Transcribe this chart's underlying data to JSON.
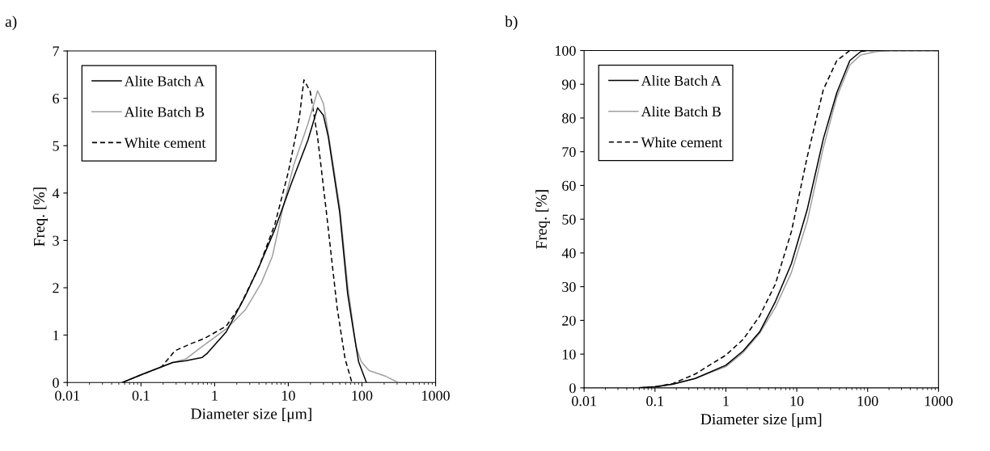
{
  "chart_data": [
    {
      "type": "line",
      "title": "a)",
      "xlabel": "Diameter size [μm]",
      "ylabel": "Freq. [%]",
      "log": "x",
      "xlim": [
        0.01,
        1000
      ],
      "xticks": [
        0.01,
        0.1,
        1,
        10,
        100,
        1000
      ],
      "ylim": [
        0,
        7
      ],
      "yticks": [
        0,
        1,
        2,
        3,
        4,
        5,
        6,
        7
      ],
      "grid": false,
      "legend": "top left",
      "series": [
        {
          "name": "Alite Batch A",
          "color": "#000000",
          "line_style": "solid",
          "x": [
            0.056,
            0.1,
            0.27,
            0.41,
            0.68,
            0.8,
            1.44,
            2.6,
            4.0,
            6.6,
            11,
            18.5,
            25,
            30,
            35,
            50,
            64,
            76,
            90,
            115
          ],
          "values": [
            0,
            0.16,
            0.42,
            0.46,
            0.53,
            0.62,
            1.07,
            1.82,
            2.44,
            3.24,
            4.2,
            5.12,
            5.8,
            5.64,
            5.18,
            3.58,
            1.87,
            1.13,
            0.44,
            0
          ]
        },
        {
          "name": "Alite Batch B",
          "color": "#a0a0a0",
          "line_style": "solid",
          "x": [
            0.056,
            0.1,
            0.27,
            0.41,
            0.68,
            1.44,
            2.6,
            4.3,
            6.1,
            8.5,
            11.9,
            18.5,
            25,
            30,
            35,
            50,
            64,
            83,
            98,
            125,
            210,
            310
          ],
          "values": [
            0,
            0.16,
            0.42,
            0.5,
            0.76,
            1.13,
            1.53,
            2.1,
            2.67,
            3.7,
            4.6,
            5.46,
            6.16,
            5.89,
            5.25,
            3.7,
            2.05,
            0.76,
            0.44,
            0.25,
            0.13,
            0
          ]
        },
        {
          "name": "White cement",
          "color": "#000000",
          "line_style": "dashed",
          "x": [
            0.056,
            0.1,
            0.19,
            0.29,
            0.48,
            0.73,
            1.44,
            2.2,
            4.0,
            6.6,
            10,
            14.1,
            16.3,
            19.8,
            25,
            33,
            46,
            59,
            73
          ],
          "values": [
            0,
            0.16,
            0.33,
            0.67,
            0.82,
            0.93,
            1.19,
            1.61,
            2.44,
            3.35,
            4.44,
            5.58,
            6.39,
            6.15,
            5.18,
            3.58,
            1.58,
            0.5,
            0
          ]
        }
      ]
    },
    {
      "type": "line",
      "title": "b)",
      "xlabel": "Diameter size [μm]",
      "ylabel": "Freq. [%]",
      "log": "x",
      "xlim": [
        0.01,
        1000
      ],
      "xticks": [
        0.01,
        0.1,
        1,
        10,
        100,
        1000
      ],
      "ylim": [
        0,
        100
      ],
      "yticks": [
        0,
        10,
        20,
        30,
        40,
        50,
        60,
        70,
        80,
        90,
        100
      ],
      "grid": false,
      "legend": "top left",
      "series": [
        {
          "name": "Alite Batch A",
          "color": "#000000",
          "line_style": "solid",
          "x": [
            0.06,
            0.1,
            0.18,
            0.37,
            1,
            1.76,
            3.0,
            5.0,
            8.4,
            14.1,
            23.7,
            36.7,
            56,
            80,
            100,
            1000
          ],
          "values": [
            0,
            0.3,
            1.1,
            2.8,
            6.7,
            11,
            16.6,
            25.6,
            36.8,
            53,
            73.8,
            87.5,
            97,
            99.7,
            100,
            100
          ]
        },
        {
          "name": "Alite Batch B",
          "color": "#a0a0a0",
          "line_style": "solid",
          "x": [
            0.06,
            0.1,
            0.18,
            0.37,
            1,
            1.76,
            3.0,
            5.0,
            8.4,
            14.1,
            23.7,
            36.7,
            56,
            80,
            134,
            207,
            1000
          ],
          "values": [
            0,
            0.3,
            1.1,
            2.8,
            6.3,
            10.5,
            16.2,
            23.9,
            34.2,
            49.5,
            71.2,
            86.2,
            95.7,
            98.7,
            99.7,
            100,
            100
          ]
        },
        {
          "name": "White cement",
          "color": "#000000",
          "line_style": "dashed",
          "x": [
            0.06,
            0.1,
            0.18,
            0.37,
            1,
            1.76,
            3.0,
            5.0,
            8.4,
            14.1,
            23.7,
            36.7,
            56,
            1000
          ],
          "values": [
            0,
            0.3,
            1.3,
            4.1,
            9.7,
            14.4,
            21.3,
            30.8,
            46.3,
            68.6,
            88.4,
            97,
            100,
            100
          ]
        }
      ]
    }
  ]
}
